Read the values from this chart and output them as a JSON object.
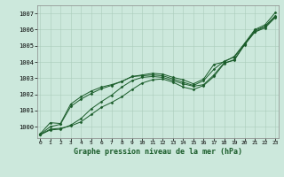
{
  "background_color": "#cce8dc",
  "grid_color": "#aaccbb",
  "line_color": "#1a5c2a",
  "title": "Graphe pression niveau de la mer (hPa)",
  "ylabel_ticks": [
    1000,
    1001,
    1002,
    1003,
    1004,
    1005,
    1006,
    1007
  ],
  "xtick_labels": [
    "0",
    "1",
    "2",
    "3",
    "4",
    "5",
    "6",
    "7",
    "8",
    "9",
    "10",
    "11",
    "12",
    "13",
    "14",
    "15",
    "16",
    "17",
    "18",
    "19",
    "20",
    "21",
    "22",
    "23"
  ],
  "xticks": [
    0,
    1,
    2,
    3,
    4,
    5,
    6,
    7,
    8,
    9,
    10,
    11,
    12,
    13,
    14,
    15,
    16,
    17,
    18,
    19,
    20,
    21,
    22,
    23
  ],
  "ylim": [
    999.3,
    1007.5
  ],
  "xlim": [
    -0.3,
    23.3
  ],
  "series": [
    [
      999.5,
      999.8,
      999.85,
      1000.1,
      1000.5,
      1001.1,
      1001.55,
      1001.95,
      1002.45,
      1002.85,
      1003.05,
      1003.1,
      1003.05,
      1002.85,
      1002.65,
      1002.5,
      1002.6,
      1003.2,
      1003.95,
      1004.1,
      1005.1,
      1005.95,
      1006.2,
      1006.85
    ],
    [
      999.5,
      999.85,
      999.9,
      1000.05,
      1000.3,
      1000.75,
      1001.2,
      1001.5,
      1001.85,
      1002.3,
      1002.7,
      1002.9,
      1002.95,
      1002.75,
      1002.45,
      1002.3,
      1002.55,
      1003.1,
      1003.9,
      1004.15,
      1005.05,
      1005.85,
      1006.1,
      1006.75
    ],
    [
      999.55,
      1000.25,
      1000.2,
      1001.4,
      1001.85,
      1002.2,
      1002.45,
      1002.6,
      1002.8,
      1003.1,
      1003.2,
      1003.3,
      1003.25,
      1003.05,
      1002.9,
      1002.65,
      1002.95,
      1003.85,
      1004.0,
      1004.35,
      1005.15,
      1006.0,
      1006.3,
      1007.05
    ],
    [
      999.52,
      1000.0,
      1000.15,
      1001.25,
      1001.7,
      1002.05,
      1002.35,
      1002.55,
      1002.8,
      1003.1,
      1003.15,
      1003.2,
      1003.15,
      1002.95,
      1002.75,
      1002.55,
      1002.85,
      1003.55,
      1004.05,
      1004.3,
      1005.1,
      1005.85,
      1006.2,
      1006.8
    ]
  ]
}
